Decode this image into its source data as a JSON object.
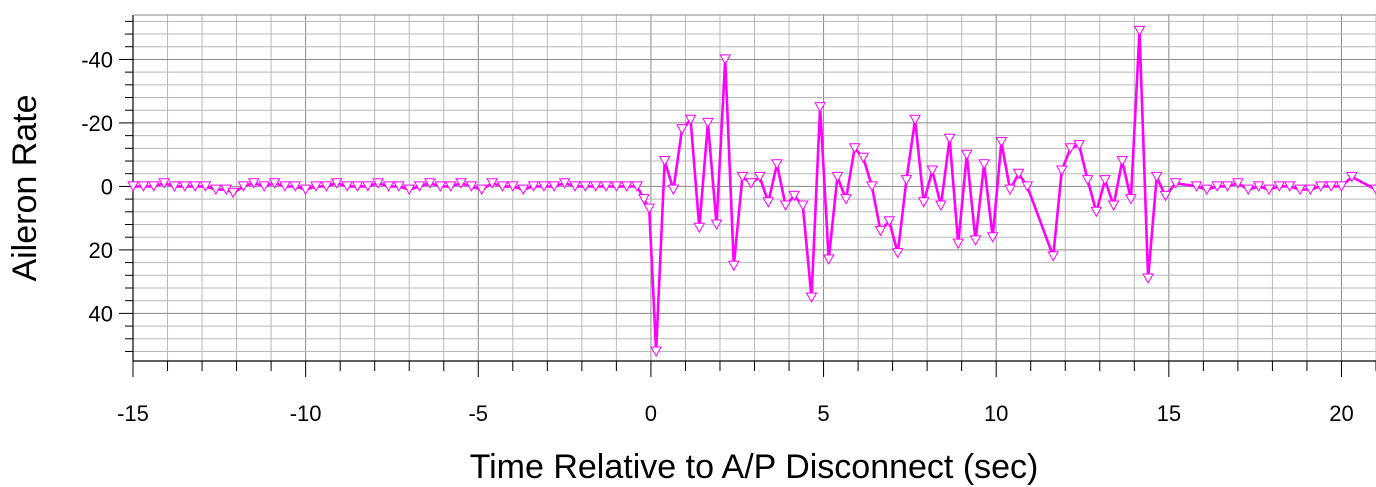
{
  "chart_data": {
    "type": "line",
    "xlabel": "Time Relative to A/P Disconnect (sec)",
    "ylabel": "Aileron Rate",
    "xlim": [
      -15,
      21
    ],
    "ylim": [
      -54,
      55
    ],
    "y_inverted": true,
    "x_ticks": [
      -15,
      -10,
      -5,
      0,
      5,
      10,
      15,
      20
    ],
    "x_tick_labels": [
      "-15",
      "-10",
      "-5",
      "0",
      "5",
      "10",
      "15",
      "20"
    ],
    "y_ticks": [
      -40,
      -20,
      0,
      20,
      40
    ],
    "y_tick_labels": [
      "-40",
      "-20",
      "0",
      "20",
      "40"
    ],
    "grid": true,
    "marker": "triangle-down-open",
    "colors": {
      "series": "#ff00ff",
      "grid_minor": "#b8b8b8",
      "grid_major": "#8a8a8a",
      "axis": "#000000"
    },
    "series": [
      {
        "x": [
          -15,
          -14.7,
          -14.4,
          -14.1,
          -13.8,
          -13.5,
          -13.2,
          -12.9,
          -12.6,
          -12.3,
          -12.1,
          -11.8,
          -11.5,
          -11.2,
          -10.9,
          -10.6,
          -10.3,
          -10.0,
          -9.7,
          -9.4,
          -9.1,
          -8.8,
          -8.5,
          -8.2,
          -7.9,
          -7.6,
          -7.3,
          -7.0,
          -6.7,
          -6.4,
          -6.1,
          -5.8,
          -5.5,
          -5.2,
          -4.9,
          -4.6,
          -4.3,
          -4.0,
          -3.7,
          -3.4,
          -3.1,
          -2.8,
          -2.5,
          -2.2,
          -1.9,
          -1.6,
          -1.3,
          -1.0,
          -0.7,
          -0.4,
          -0.2,
          -0.05,
          0.15,
          0.4,
          0.65,
          0.9,
          1.15,
          1.4,
          1.65,
          1.9,
          2.15,
          2.4,
          2.65,
          2.9,
          3.15,
          3.4,
          3.65,
          3.9,
          4.15,
          4.4,
          4.65,
          4.9,
          5.15,
          5.4,
          5.65,
          5.9,
          6.15,
          6.4,
          6.65,
          6.9,
          7.15,
          7.4,
          7.65,
          7.9,
          8.15,
          8.4,
          8.65,
          8.9,
          9.15,
          9.4,
          9.65,
          9.9,
          10.15,
          10.4,
          10.65,
          10.9,
          11.65,
          11.9,
          12.15,
          12.4,
          12.65,
          12.9,
          13.15,
          13.4,
          13.65,
          13.9,
          14.15,
          14.4,
          14.65,
          14.9,
          15.2,
          15.8,
          16.1,
          16.4,
          16.7,
          17.0,
          17.3,
          17.6,
          17.9,
          18.2,
          18.5,
          18.8,
          19.1,
          19.4,
          19.7,
          20.0,
          20.3,
          21.0
        ],
        "y": [
          0,
          0,
          0,
          -1,
          0,
          0,
          0,
          0,
          1,
          1,
          2,
          0,
          -1,
          0,
          -1,
          0,
          0,
          1,
          0,
          0,
          -1,
          0,
          0,
          0,
          -1,
          0,
          0,
          1,
          0,
          -1,
          0,
          0,
          -1,
          0,
          1,
          -1,
          0,
          0,
          1,
          0,
          0,
          0,
          -1,
          0,
          0,
          0,
          0,
          0,
          0,
          0,
          4,
          7,
          52,
          -8,
          1,
          -18,
          -21,
          13,
          -20,
          12,
          -40,
          25,
          -3,
          -1,
          -3,
          5,
          -7,
          6,
          3,
          6,
          35,
          -25,
          23,
          -3,
          4,
          -12,
          -9,
          0,
          14,
          11,
          21,
          -2,
          -21,
          5,
          -5,
          6,
          -15,
          18,
          -10,
          17,
          -7,
          16,
          -14,
          1,
          -4,
          0,
          22,
          -5,
          -12,
          -13,
          -2,
          8,
          -2,
          6,
          -8,
          4,
          -49,
          29,
          -3,
          3,
          -1,
          0,
          1,
          0,
          0,
          -1,
          1,
          0,
          1,
          0,
          0,
          1,
          1,
          0,
          0,
          0,
          -3,
          1
        ]
      }
    ]
  }
}
